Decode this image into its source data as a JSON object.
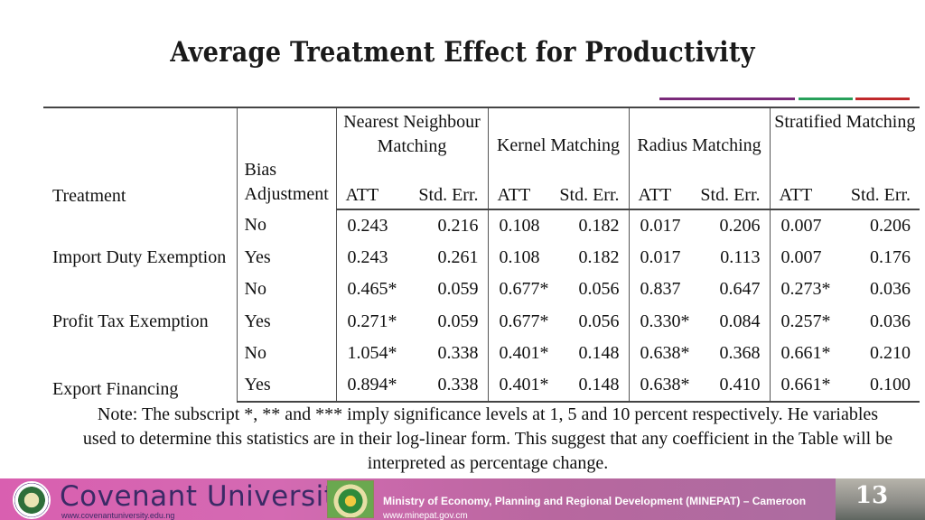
{
  "title": "Average Treatment Effect for Productivity",
  "table": {
    "group_headers": [
      "Nearest Neighbour Matching",
      "Kernel Matching",
      "Radius Matching",
      "Stratified Matching"
    ],
    "col_treatment": "Treatment",
    "col_bias": "Bias Adjustment",
    "att": "ATT",
    "se": "Std. Err.",
    "treatments": [
      "Import Duty Exemption",
      "Profit Tax Exemption",
      "Export Financing"
    ],
    "rows": [
      {
        "bias": "No",
        "values": [
          "0.243",
          "0.216",
          "0.108",
          "0.182",
          "0.017",
          "0.206",
          "0.007",
          "0.206"
        ]
      },
      {
        "bias": "Yes",
        "values": [
          "0.243",
          "0.261",
          "0.108",
          "0.182",
          "0.017",
          "0.113",
          "0.007",
          "0.176"
        ]
      },
      {
        "bias": "No",
        "values": [
          "0.465*",
          "0.059",
          "0.677*",
          "0.056",
          "0.837",
          "0.647",
          "0.273*",
          "0.036"
        ]
      },
      {
        "bias": "Yes",
        "values": [
          "0.271*",
          "0.059",
          "0.677*",
          "0.056",
          "0.330*",
          "0.084",
          "0.257*",
          "0.036"
        ]
      },
      {
        "bias": "No",
        "values": [
          "1.054*",
          "0.338",
          "0.401*",
          "0.148",
          "0.638*",
          "0.368",
          "0.661*",
          "0.210"
        ]
      },
      {
        "bias": "Yes",
        "values": [
          "0.894*",
          "0.338",
          "0.401*",
          "0.148",
          "0.638*",
          "0.410",
          "0.661*",
          "0.100"
        ]
      }
    ]
  },
  "note": "Note: The subscript *, ** and *** imply significance levels at 1, 5 and 10 percent respectively. He variables used to determine this statistics are in their log-linear form. This suggest that any coefficient in the Table will be interpreted as percentage change.",
  "footer": {
    "university": "Covenant University",
    "university_url": "www.covenantuniversity.edu.ng",
    "ministry": "Ministry of Economy, Planning and Regional Development (MINEPAT) – Cameroon",
    "ministry_url": "www.minepat.gov.cm",
    "slide_number": "13"
  }
}
